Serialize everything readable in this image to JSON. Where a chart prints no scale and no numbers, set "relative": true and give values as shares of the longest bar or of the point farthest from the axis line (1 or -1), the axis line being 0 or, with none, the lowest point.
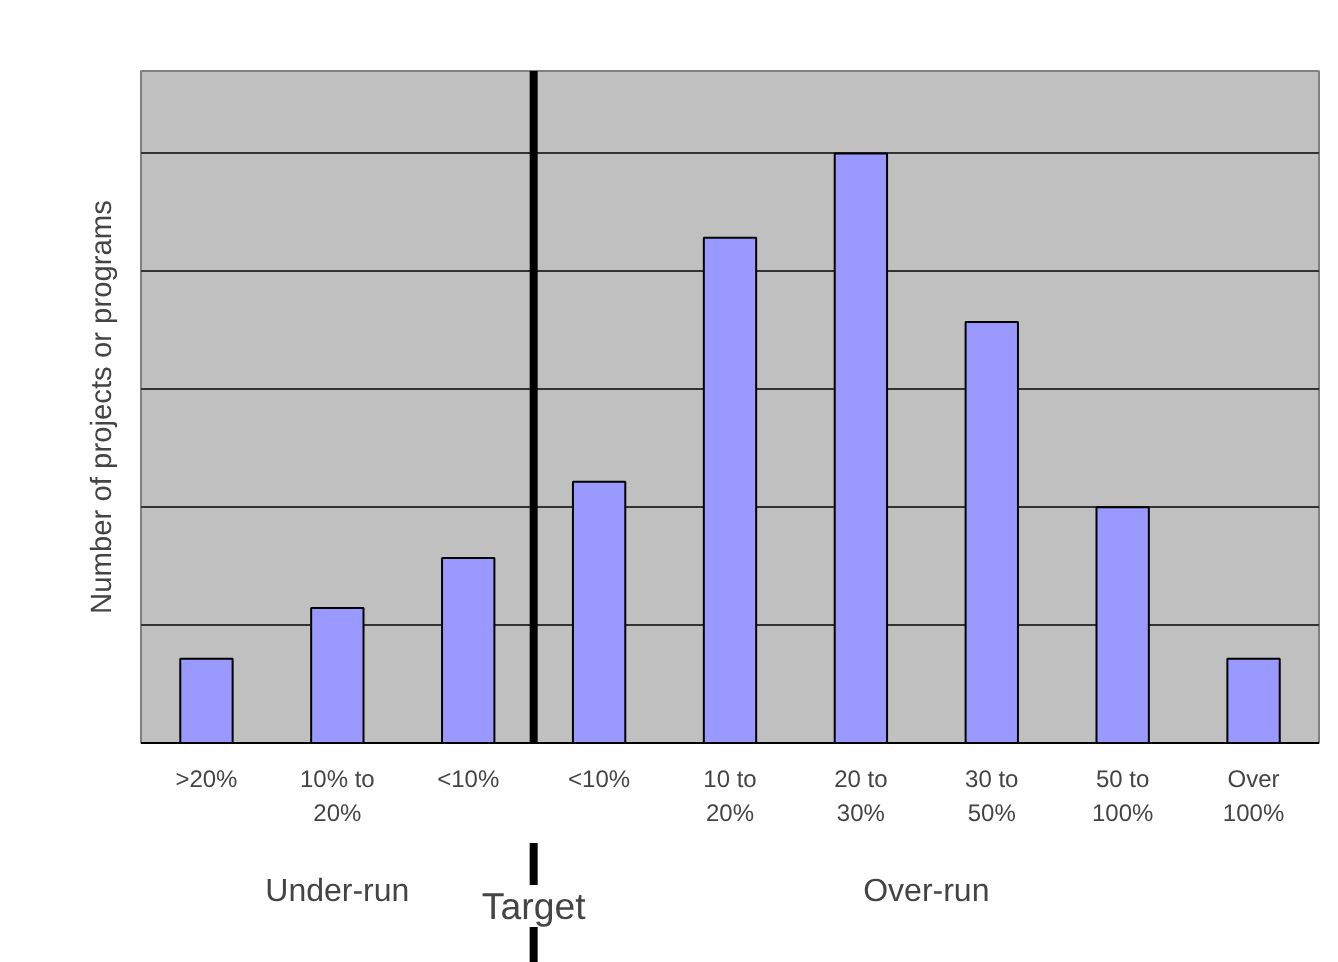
{
  "chart_data": {
    "type": "bar",
    "ylabel": "Number of projects or programs",
    "categories": [
      ">20%",
      "10% to 20%",
      "<10%",
      "<10%",
      "10 to 20%",
      "20 to 30%",
      "30 to 50%",
      "50 to 100%",
      "Over 100%"
    ],
    "values": [
      0.143,
      0.229,
      0.314,
      0.443,
      0.857,
      1,
      0.714,
      0.4,
      0.143
    ],
    "color": "#9999ff",
    "relative": true,
    "grid": "y",
    "annotations": [
      "Under-run",
      "Target",
      "Over-run"
    ]
  }
}
